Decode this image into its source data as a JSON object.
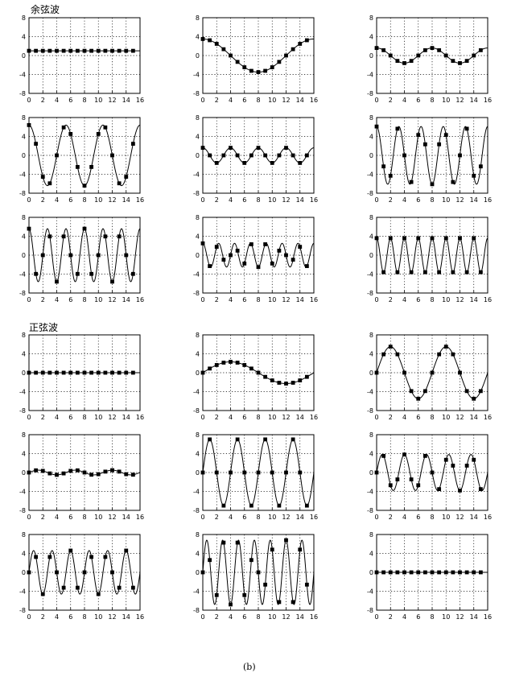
{
  "sections": {
    "cosine_title": "余弦波",
    "sine_title": "正弦波"
  },
  "caption": "(b)",
  "chart_data": [
    {
      "type": "line",
      "group": "余弦波",
      "n": 0,
      "wave": "cos",
      "amp": 1,
      "xlim": [
        0,
        16
      ],
      "ylim": [
        -8,
        8
      ],
      "xticks": [
        0,
        2,
        4,
        6,
        8,
        10,
        12,
        14,
        16
      ],
      "yticks": [
        8,
        4,
        0,
        -4,
        -8
      ],
      "grid": true
    },
    {
      "type": "line",
      "group": "余弦波",
      "n": 1,
      "wave": "cos",
      "amp": 3.5,
      "xlim": [
        0,
        16
      ],
      "ylim": [
        -8,
        8
      ],
      "xticks": [
        0,
        2,
        4,
        6,
        8,
        10,
        12,
        14,
        16
      ],
      "yticks": [
        8,
        4,
        0,
        -4,
        -8
      ],
      "grid": true
    },
    {
      "type": "line",
      "group": "余弦波",
      "n": 2,
      "wave": "cos",
      "amp": 1.6,
      "xlim": [
        0,
        16
      ],
      "ylim": [
        -8,
        8
      ],
      "xticks": [
        0,
        2,
        4,
        6,
        8,
        10,
        12,
        14,
        16
      ],
      "yticks": [
        8,
        4,
        0,
        -4,
        -8
      ],
      "grid": true
    },
    {
      "type": "line",
      "group": "余弦波",
      "n": 3,
      "wave": "cos",
      "amp": 6.4,
      "xlim": [
        0,
        16
      ],
      "ylim": [
        -8,
        8
      ],
      "xticks": [
        0,
        2,
        4,
        6,
        8,
        10,
        12,
        14,
        16
      ],
      "yticks": [
        8,
        4,
        0,
        -4,
        -8
      ],
      "grid": true
    },
    {
      "type": "line",
      "group": "余弦波",
      "n": 4,
      "wave": "cos",
      "amp": 1.6,
      "xlim": [
        0,
        16
      ],
      "ylim": [
        -8,
        8
      ],
      "xticks": [
        0,
        2,
        4,
        6,
        8,
        10,
        12,
        14,
        16
      ],
      "yticks": [
        8,
        4,
        0,
        -4,
        -8
      ],
      "grid": true
    },
    {
      "type": "line",
      "group": "余弦波",
      "n": 5,
      "wave": "cos",
      "amp": 6.1,
      "xlim": [
        0,
        16
      ],
      "ylim": [
        -8,
        8
      ],
      "xticks": [
        0,
        2,
        4,
        6,
        8,
        10,
        12,
        14,
        16
      ],
      "yticks": [
        8,
        4,
        0,
        -4,
        -8
      ],
      "grid": true
    },
    {
      "type": "line",
      "group": "余弦波",
      "n": 6,
      "wave": "cos",
      "amp": 5.6,
      "xlim": [
        0,
        16
      ],
      "ylim": [
        -8,
        8
      ],
      "xticks": [
        0,
        2,
        4,
        6,
        8,
        10,
        12,
        14,
        16
      ],
      "yticks": [
        8,
        4,
        0,
        -4,
        -8
      ],
      "grid": true
    },
    {
      "type": "line",
      "group": "余弦波",
      "n": 7,
      "wave": "cos",
      "amp": 2.5,
      "xlim": [
        0,
        16
      ],
      "ylim": [
        -8,
        8
      ],
      "xticks": [
        0,
        2,
        4,
        6,
        8,
        10,
        12,
        14,
        16
      ],
      "yticks": [
        8,
        4,
        0,
        -4,
        -8
      ],
      "grid": true
    },
    {
      "type": "line",
      "group": "余弦波",
      "n": 8,
      "wave": "cos",
      "amp": 3.6,
      "xlim": [
        0,
        16
      ],
      "ylim": [
        -8,
        8
      ],
      "xticks": [
        0,
        2,
        4,
        6,
        8,
        10,
        12,
        14,
        16
      ],
      "yticks": [
        8,
        4,
        0,
        -4,
        -8
      ],
      "grid": true
    },
    {
      "type": "line",
      "group": "正弦波",
      "n": 0,
      "wave": "sin",
      "amp": 0,
      "xlim": [
        0,
        16
      ],
      "ylim": [
        -8,
        8
      ],
      "xticks": [
        0,
        2,
        4,
        6,
        8,
        10,
        12,
        14,
        16
      ],
      "yticks": [
        8,
        4,
        0,
        -4,
        -8
      ],
      "grid": true
    },
    {
      "type": "line",
      "group": "正弦波",
      "n": 1,
      "wave": "sin",
      "amp": 2.3,
      "xlim": [
        0,
        16
      ],
      "ylim": [
        -8,
        8
      ],
      "xticks": [
        0,
        2,
        4,
        6,
        8,
        10,
        12,
        14,
        16
      ],
      "yticks": [
        8,
        4,
        0,
        -4,
        -8
      ],
      "grid": true
    },
    {
      "type": "line",
      "group": "正弦波",
      "n": 2,
      "wave": "sin",
      "amp": 5.5,
      "xlim": [
        0,
        16
      ],
      "ylim": [
        -8,
        8
      ],
      "xticks": [
        0,
        2,
        4,
        6,
        8,
        10,
        12,
        14,
        16
      ],
      "yticks": [
        8,
        4,
        0,
        -4,
        -8
      ],
      "grid": true
    },
    {
      "type": "line",
      "group": "正弦波",
      "n": 3,
      "wave": "sin",
      "amp": 0.5,
      "xlim": [
        0,
        16
      ],
      "ylim": [
        -8,
        8
      ],
      "xticks": [
        0,
        2,
        4,
        6,
        8,
        10,
        12,
        14,
        16
      ],
      "yticks": [
        8,
        4,
        0,
        -4,
        -8
      ],
      "grid": true
    },
    {
      "type": "line",
      "group": "正弦波",
      "n": 4,
      "wave": "sin",
      "amp": 7.0,
      "xlim": [
        0,
        16
      ],
      "ylim": [
        -8,
        8
      ],
      "xticks": [
        0,
        2,
        4,
        6,
        8,
        10,
        12,
        14,
        16
      ],
      "yticks": [
        8,
        4,
        0,
        -4,
        -8
      ],
      "grid": true
    },
    {
      "type": "line",
      "group": "正弦波",
      "n": 5,
      "wave": "sin",
      "amp": 3.8,
      "xlim": [
        0,
        16
      ],
      "ylim": [
        -8,
        8
      ],
      "xticks": [
        0,
        2,
        4,
        6,
        8,
        10,
        12,
        14,
        16
      ],
      "yticks": [
        8,
        4,
        0,
        -4,
        -8
      ],
      "grid": true
    },
    {
      "type": "line",
      "group": "正弦波",
      "n": 6,
      "wave": "sin",
      "amp": 4.6,
      "xlim": [
        0,
        16
      ],
      "ylim": [
        -8,
        8
      ],
      "xticks": [
        0,
        2,
        4,
        6,
        8,
        10,
        12,
        14,
        16
      ],
      "yticks": [
        8,
        4,
        0,
        -4,
        -8
      ],
      "grid": true
    },
    {
      "type": "line",
      "group": "正弦波",
      "n": 7,
      "wave": "sin",
      "amp": 6.8,
      "xlim": [
        0,
        16
      ],
      "ylim": [
        -8,
        8
      ],
      "xticks": [
        0,
        2,
        4,
        6,
        8,
        10,
        12,
        14,
        16
      ],
      "yticks": [
        8,
        4,
        0,
        -4,
        -8
      ],
      "grid": true
    },
    {
      "type": "line",
      "group": "正弦波",
      "n": 8,
      "wave": "sin",
      "amp": 0,
      "xlim": [
        0,
        16
      ],
      "ylim": [
        -8,
        8
      ],
      "xticks": [
        0,
        2,
        4,
        6,
        8,
        10,
        12,
        14,
        16
      ],
      "yticks": [
        8,
        4,
        0,
        -4,
        -8
      ],
      "grid": true
    }
  ]
}
